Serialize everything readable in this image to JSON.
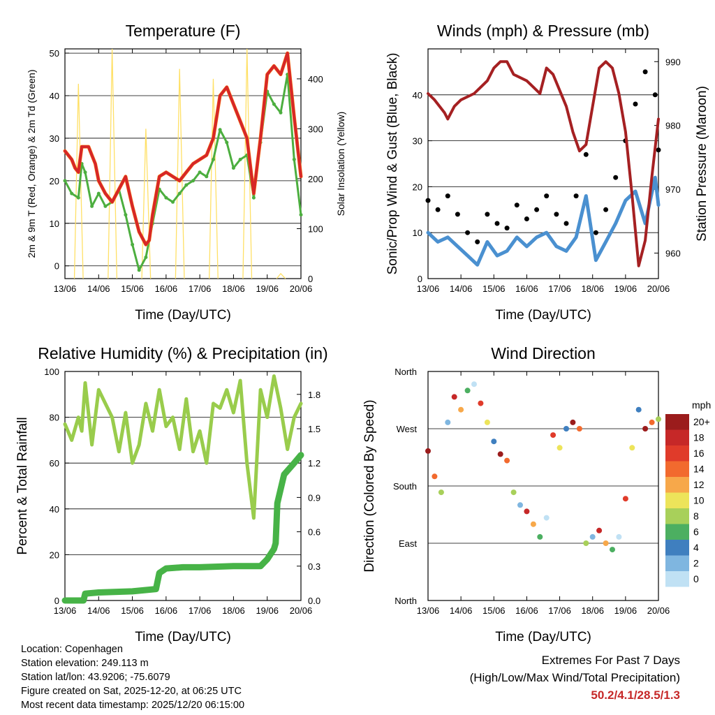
{
  "info": {
    "location": "Location: Copenhagen",
    "elevation": "Station elevation: 249.113 m",
    "latlon": "Station lat/lon: 43.9206; -75.6079",
    "created": "Figure created on Sat, 2025-12-20, at 06:25 UTC",
    "recent": "Most recent data timestamp: 2025/12/20 06:15:00"
  },
  "extremes": {
    "title": "Extremes For Past 7 Days",
    "subtitle": "(High/Low/Max Wind/Total Precipitation)",
    "values": "50.2/4.1/28.5/1.3"
  },
  "colors": {
    "temp2m": "#d62728",
    "temp9m": "#ff7f0e",
    "dewpoint": "#4cae3f",
    "solar": "#ffe066",
    "wind": "#4a90d0",
    "gust": "#000000",
    "pressure": "#a52022",
    "rh": "#99cc4c",
    "precip": "#47b347"
  },
  "chart_data": [
    {
      "type": "line",
      "title": "Temperature (F)",
      "xlabel": "Time (Day/UTC)",
      "ylabel": "2m & 9m T (Red, Orange) & 2m Td (Green)",
      "ylabel_right": "Solar Insolation (Yellow)",
      "x_ticks": [
        "13/06",
        "14/06",
        "15/06",
        "16/06",
        "17/06",
        "18/06",
        "19/06",
        "20/06"
      ],
      "ylim": [
        -3,
        51
      ],
      "y_ticks": [
        0,
        10,
        20,
        30,
        40,
        50
      ],
      "ylim_right": [
        0,
        460
      ],
      "y_ticks_right": [
        0,
        100,
        200,
        300,
        400
      ],
      "series": [
        {
          "name": "2m T",
          "x": [
            0,
            0.2,
            0.3,
            0.4,
            0.5,
            0.7,
            0.8,
            0.9,
            1.0,
            1.2,
            1.4,
            1.6,
            1.8,
            2.0,
            2.2,
            2.4,
            2.5,
            2.6,
            2.8,
            3.0,
            3.2,
            3.4,
            3.6,
            3.8,
            4.0,
            4.2,
            4.4,
            4.6,
            4.8,
            5.0,
            5.2,
            5.4,
            5.6,
            5.8,
            6.0,
            6.2,
            6.4,
            6.6,
            6.8,
            7.0
          ],
          "values": [
            27,
            25,
            23,
            22,
            28,
            28,
            26,
            24,
            20,
            17,
            15,
            18,
            21,
            14,
            8,
            5,
            6,
            12,
            21,
            22,
            21,
            20,
            22,
            24,
            25,
            26,
            30,
            40,
            42,
            38,
            34,
            30,
            17,
            30,
            45,
            47,
            45,
            50,
            35,
            21
          ]
        },
        {
          "name": "9m T",
          "x": [
            0,
            0.2,
            0.3,
            0.4,
            0.5,
            0.7,
            0.8,
            0.9,
            1.0,
            1.2,
            1.4,
            1.6,
            1.8,
            2.0,
            2.2,
            2.4,
            2.5,
            2.6,
            2.8,
            3.0,
            3.2,
            3.4,
            3.6,
            3.8,
            4.0,
            4.2,
            4.4,
            4.6,
            4.8,
            5.0,
            5.2,
            5.4,
            5.6,
            5.8,
            6.0,
            6.2,
            6.4,
            6.6,
            6.8,
            7.0
          ],
          "values": [
            27,
            25,
            23,
            22,
            28,
            28,
            26,
            24,
            20,
            17,
            15,
            18,
            21,
            14,
            8,
            5,
            6,
            12,
            21,
            22,
            21,
            20,
            22,
            24,
            25,
            26,
            30,
            40,
            42,
            38,
            34,
            30,
            17,
            30,
            45,
            47,
            45,
            50,
            35,
            21
          ]
        },
        {
          "name": "2m Td",
          "x": [
            0,
            0.2,
            0.4,
            0.5,
            0.6,
            0.8,
            1.0,
            1.2,
            1.4,
            1.6,
            1.8,
            2.0,
            2.2,
            2.4,
            2.6,
            2.8,
            3.0,
            3.2,
            3.4,
            3.6,
            3.8,
            4.0,
            4.2,
            4.4,
            4.6,
            4.8,
            5.0,
            5.2,
            5.4,
            5.6,
            5.8,
            6.0,
            6.2,
            6.4,
            6.6,
            6.8,
            7.0
          ],
          "values": [
            20,
            17,
            16,
            24,
            22,
            14,
            17,
            14,
            15,
            18,
            12,
            5,
            -1,
            2,
            10,
            18,
            16,
            15,
            17,
            19,
            20,
            22,
            21,
            25,
            32,
            29,
            23,
            25,
            26,
            16,
            29,
            41,
            38,
            36,
            45,
            25,
            12
          ]
        },
        {
          "name": "Solar Insolation",
          "axis": "right",
          "x": [
            0.4,
            1.4,
            2.4,
            3.4,
            4.4,
            5.4,
            6.4
          ],
          "values": [
            390,
            460,
            300,
            420,
            400,
            460,
            10
          ]
        }
      ]
    },
    {
      "type": "line",
      "title": "Winds (mph) & Pressure (mb)",
      "xlabel": "Time (Day/UTC)",
      "ylabel": "Sonic/Prop Wind & Gust (Blue, Black)",
      "ylabel_right": "Station Pressure (Maroon)",
      "x_ticks": [
        "13/06",
        "14/06",
        "15/06",
        "16/06",
        "17/06",
        "18/06",
        "19/06",
        "20/06"
      ],
      "ylim": [
        0,
        50
      ],
      "y_ticks": [
        0,
        10,
        20,
        30,
        40
      ],
      "ylim_right": [
        956,
        992
      ],
      "y_ticks_right": [
        960,
        970,
        980,
        990
      ],
      "series": [
        {
          "name": "Wind",
          "x": [
            0,
            0.3,
            0.6,
            0.9,
            1.2,
            1.5,
            1.8,
            2.1,
            2.4,
            2.7,
            3.0,
            3.3,
            3.6,
            3.9,
            4.2,
            4.5,
            4.8,
            5.1,
            5.4,
            5.7,
            6.0,
            6.3,
            6.6,
            6.9,
            7.0
          ],
          "values": [
            10,
            8,
            9,
            7,
            5,
            3,
            8,
            5,
            6,
            9,
            7,
            9,
            10,
            7,
            6,
            9,
            18,
            4,
            8,
            12,
            17,
            19,
            12,
            22,
            16
          ]
        },
        {
          "name": "Gust",
          "x": [
            0,
            0.3,
            0.6,
            0.9,
            1.2,
            1.5,
            1.8,
            2.1,
            2.4,
            2.7,
            3.0,
            3.3,
            3.6,
            3.9,
            4.2,
            4.5,
            4.8,
            5.1,
            5.4,
            5.7,
            6.0,
            6.3,
            6.6,
            6.9,
            7.0
          ],
          "values": [
            17,
            15,
            18,
            14,
            10,
            8,
            14,
            12,
            11,
            16,
            13,
            15,
            18,
            14,
            12,
            18,
            27,
            10,
            15,
            22,
            30,
            38,
            45,
            40,
            28
          ]
        },
        {
          "name": "Station Pressure",
          "axis": "right",
          "x": [
            0,
            0.2,
            0.5,
            0.6,
            0.8,
            1.0,
            1.4,
            1.8,
            2.0,
            2.2,
            2.4,
            2.6,
            3.0,
            3.2,
            3.4,
            3.6,
            3.8,
            4.2,
            4.4,
            4.6,
            4.8,
            5.0,
            5.2,
            5.4,
            5.6,
            5.8,
            6.0,
            6.2,
            6.4,
            6.6,
            6.8,
            7.0
          ],
          "values": [
            985,
            984,
            982,
            981,
            983,
            984,
            985,
            987,
            989,
            990,
            990,
            988,
            987,
            986,
            985,
            989,
            988,
            983,
            979,
            976,
            977,
            983,
            989,
            990,
            989,
            985,
            979,
            969,
            958,
            962,
            972,
            981
          ]
        }
      ]
    },
    {
      "type": "line",
      "title": "Relative Humidity (%) & Precipitation (in)",
      "xlabel": "Time (Day/UTC)",
      "ylabel": "Percent & Total Rainfall",
      "x_ticks": [
        "13/06",
        "14/06",
        "15/06",
        "16/06",
        "17/06",
        "18/06",
        "19/06",
        "20/06"
      ],
      "ylim": [
        0,
        100
      ],
      "y_ticks": [
        0,
        20,
        40,
        60,
        80,
        100
      ],
      "ylim_right": [
        0,
        2.0
      ],
      "y_ticks_right": [
        0.0,
        0.3,
        0.6,
        0.9,
        1.2,
        1.5,
        1.8
      ],
      "series": [
        {
          "name": "Relative Humidity",
          "x": [
            0,
            0.2,
            0.4,
            0.5,
            0.6,
            0.8,
            1.0,
            1.2,
            1.4,
            1.6,
            1.8,
            2.0,
            2.2,
            2.4,
            2.6,
            2.8,
            3.0,
            3.2,
            3.4,
            3.6,
            3.8,
            4.0,
            4.2,
            4.4,
            4.6,
            4.8,
            5.0,
            5.2,
            5.4,
            5.6,
            5.8,
            6.0,
            6.2,
            6.4,
            6.6,
            6.8,
            7.0
          ],
          "values": [
            77,
            70,
            80,
            74,
            95,
            68,
            92,
            86,
            80,
            65,
            82,
            60,
            68,
            86,
            74,
            92,
            76,
            80,
            66,
            88,
            65,
            74,
            60,
            86,
            84,
            92,
            82,
            96,
            60,
            36,
            92,
            80,
            98,
            84,
            66,
            80,
            86
          ]
        },
        {
          "name": "Total Rainfall",
          "axis": "right",
          "x": [
            0,
            0.55,
            0.6,
            1.0,
            2.0,
            2.7,
            2.8,
            3.0,
            3.5,
            4.0,
            5.0,
            5.8,
            6.0,
            6.2,
            6.25,
            6.3,
            6.5,
            6.8,
            7.0
          ],
          "values": [
            0,
            0,
            0.06,
            0.07,
            0.08,
            0.1,
            0.24,
            0.28,
            0.29,
            0.29,
            0.3,
            0.3,
            0.36,
            0.45,
            0.5,
            0.85,
            1.1,
            1.2,
            1.27
          ]
        }
      ]
    },
    {
      "type": "scatter",
      "title": "Wind Direction",
      "xlabel": "Time (Day/UTC)",
      "ylabel": "Direction (Colored By Speed)",
      "x_ticks": [
        "13/06",
        "14/06",
        "15/06",
        "16/06",
        "17/06",
        "18/06",
        "19/06",
        "20/06"
      ],
      "ylim": [
        0,
        360
      ],
      "y_ticks": [
        "North",
        "East",
        "South",
        "West",
        "North"
      ],
      "colorbar_title": "mph",
      "colorbar_labels": [
        "20+",
        "18",
        "16",
        "14",
        "12",
        "10",
        "8",
        "6",
        "4",
        "2",
        "0"
      ],
      "colorbar_colors": [
        "#9b1c1c",
        "#c62828",
        "#e03b2a",
        "#f26a2e",
        "#f7a84a",
        "#ede45a",
        "#a8d05a",
        "#4caf61",
        "#3f7fbf",
        "#7fb6e0",
        "#c0e1f4"
      ],
      "x": [
        0,
        0.2,
        0.4,
        0.6,
        0.8,
        1.0,
        1.2,
        1.4,
        1.6,
        1.8,
        2.0,
        2.2,
        2.4,
        2.6,
        2.8,
        3.0,
        3.2,
        3.4,
        3.6,
        3.8,
        4.0,
        4.2,
        4.4,
        4.6,
        4.8,
        5.0,
        5.2,
        5.4,
        5.6,
        5.8,
        6.0,
        6.2,
        6.4,
        6.6,
        6.8,
        7.0
      ],
      "values": [
        235,
        195,
        170,
        280,
        320,
        300,
        330,
        340,
        310,
        280,
        250,
        230,
        220,
        170,
        150,
        140,
        120,
        100,
        130,
        260,
        240,
        270,
        280,
        270,
        90,
        100,
        110,
        90,
        80,
        100,
        160,
        240,
        300,
        270,
        280,
        285
      ]
    }
  ]
}
